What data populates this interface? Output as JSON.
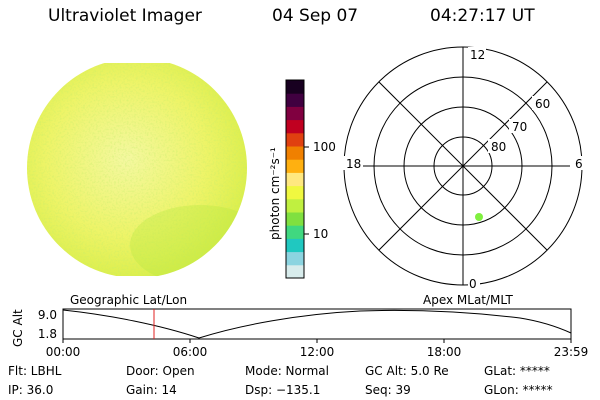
{
  "header": {
    "title": "Ultraviolet Imager",
    "date": "04 Sep 07",
    "time": "04:27:17 UT"
  },
  "colorbar": {
    "unit_label": "photon cm⁻²s⁻¹",
    "tick_100": "100",
    "tick_10": "10",
    "colors": [
      "#d8ecec",
      "#8cd4e0",
      "#20c8c0",
      "#40d880",
      "#80e040",
      "#c0f040",
      "#f0f840",
      "#ffe880",
      "#ffb010",
      "#f08000",
      "#e04010",
      "#c00020",
      "#800040",
      "#400040",
      "#180020"
    ]
  },
  "polar_plot": {
    "label_12": "12",
    "label_0": "0",
    "label_18": "18",
    "label_6": "6",
    "label_60": "60",
    "label_70": "70",
    "label_80": "80",
    "marker_color": "#80f040"
  },
  "altitude_plot": {
    "y_label": "GC Alt",
    "y_max": "9.0",
    "y_min": "1.8",
    "left_title": "Geographic Lat/Lon",
    "right_title": "Apex MLat/MLT",
    "x_ticks": [
      "00:00",
      "06:00",
      "12:00",
      "18:00",
      "23:59"
    ],
    "current_time_color": "#e02020"
  },
  "info": {
    "flt": "Flt: LBHL",
    "door": "Door: Open",
    "mode": "Mode: Normal",
    "gc_alt": "GC Alt: 5.0 Re",
    "glat": "GLat: *****",
    "ip": "IP: 36.0",
    "gain": "Gain: 14",
    "dsp": "Dsp: −135.1",
    "seq": "Seq: 39",
    "glon": "GLon: *****"
  }
}
